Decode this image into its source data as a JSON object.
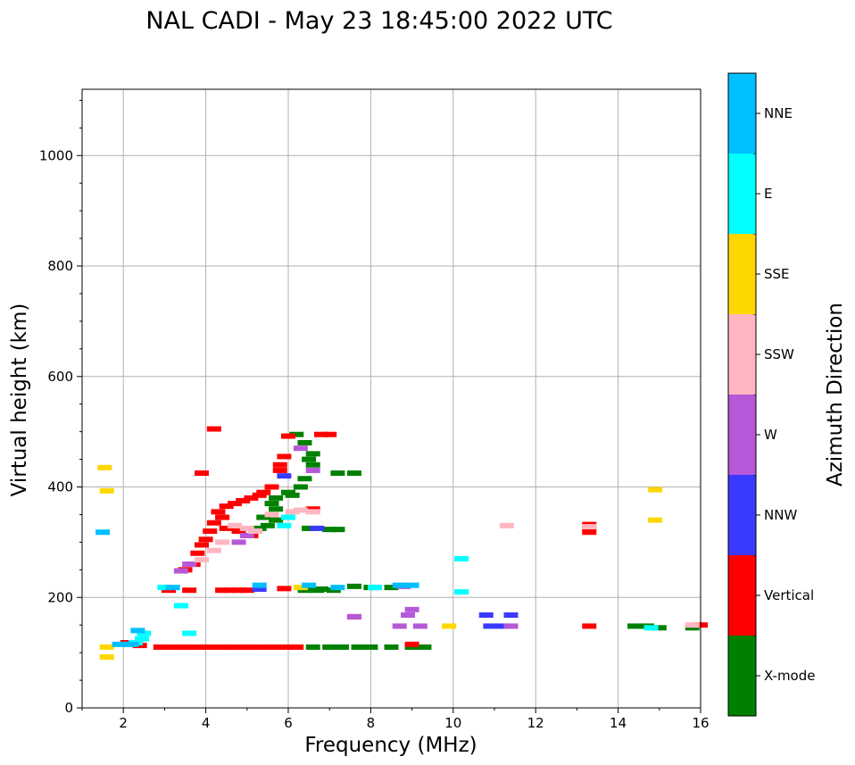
{
  "chart_data": {
    "type": "scatter",
    "title": "NAL CADI - May 23 18:45:00 2022 UTC",
    "xlabel": "Frequency (MHz)",
    "ylabel": "Virtual height (km)",
    "xlim": [
      1,
      16
    ],
    "ylim": [
      0,
      1120
    ],
    "xticks": [
      2,
      4,
      6,
      8,
      10,
      12,
      14,
      16
    ],
    "yticks": [
      0,
      200,
      400,
      600,
      800,
      1000
    ],
    "grid": true,
    "colorbar": {
      "label": "Azimuth Direction",
      "categories": [
        {
          "name": "X-mode",
          "color": "#008000"
        },
        {
          "name": "Vertical",
          "color": "#ff0000"
        },
        {
          "name": "NNW",
          "color": "#3a3aff"
        },
        {
          "name": "W",
          "color": "#b658d8"
        },
        {
          "name": "SSW",
          "color": "#ffb6c1"
        },
        {
          "name": "SSE",
          "color": "#ffd700"
        },
        {
          "name": "E",
          "color": "#00ffff"
        },
        {
          "name": "NNE",
          "color": "#00bfff"
        }
      ]
    },
    "series": [
      {
        "name": "X-mode",
        "points": [
          [
            6.2,
            495
          ],
          [
            6.4,
            480
          ],
          [
            6.6,
            460
          ],
          [
            6.5,
            450
          ],
          [
            6.6,
            440
          ],
          [
            6.4,
            415
          ],
          [
            6.3,
            400
          ],
          [
            6.0,
            390
          ],
          [
            6.1,
            385
          ],
          [
            5.7,
            380
          ],
          [
            5.6,
            370
          ],
          [
            5.7,
            360
          ],
          [
            5.4,
            345
          ],
          [
            5.7,
            340
          ],
          [
            5.5,
            330
          ],
          [
            5.3,
            325
          ],
          [
            6.5,
            325
          ],
          [
            7.0,
            323
          ],
          [
            7.2,
            323
          ],
          [
            6.8,
            215
          ],
          [
            7.1,
            213
          ],
          [
            7.6,
            220
          ],
          [
            8.0,
            218
          ],
          [
            8.5,
            218
          ],
          [
            6.4,
            213
          ],
          [
            6.7,
            213
          ],
          [
            6.6,
            110
          ],
          [
            7.0,
            110
          ],
          [
            7.3,
            110
          ],
          [
            7.7,
            110
          ],
          [
            8.0,
            110
          ],
          [
            8.5,
            110
          ],
          [
            9.0,
            110
          ],
          [
            9.3,
            110
          ],
          [
            14.4,
            148
          ],
          [
            14.7,
            148
          ],
          [
            15.0,
            145
          ],
          [
            15.8,
            145
          ],
          [
            7.2,
            425
          ],
          [
            7.6,
            425
          ]
        ]
      },
      {
        "name": "Vertical",
        "points": [
          [
            4.2,
            505
          ],
          [
            5.9,
            455
          ],
          [
            5.8,
            440
          ],
          [
            5.8,
            430
          ],
          [
            5.6,
            400
          ],
          [
            5.4,
            390
          ],
          [
            5.3,
            385
          ],
          [
            5.1,
            380
          ],
          [
            4.9,
            375
          ],
          [
            4.7,
            370
          ],
          [
            4.5,
            365
          ],
          [
            4.3,
            355
          ],
          [
            4.4,
            345
          ],
          [
            4.2,
            335
          ],
          [
            4.1,
            320
          ],
          [
            4.0,
            305
          ],
          [
            3.9,
            295
          ],
          [
            3.8,
            280
          ],
          [
            3.7,
            260
          ],
          [
            3.5,
            250
          ],
          [
            6.6,
            360
          ],
          [
            4.5,
            325
          ],
          [
            4.8,
            320
          ],
          [
            5.1,
            312
          ],
          [
            6.0,
            492
          ],
          [
            6.8,
            495
          ],
          [
            7.0,
            495
          ],
          [
            3.9,
            425
          ],
          [
            4.4,
            213
          ],
          [
            4.6,
            213
          ],
          [
            4.8,
            213
          ],
          [
            5.0,
            213
          ],
          [
            5.9,
            216
          ],
          [
            3.1,
            213
          ],
          [
            3.6,
            213
          ],
          [
            2.9,
            110
          ],
          [
            3.2,
            110
          ],
          [
            3.5,
            110
          ],
          [
            3.8,
            110
          ],
          [
            4.1,
            110
          ],
          [
            4.4,
            110
          ],
          [
            4.7,
            110
          ],
          [
            5.0,
            110
          ],
          [
            5.3,
            110
          ],
          [
            5.6,
            110
          ],
          [
            5.9,
            110
          ],
          [
            6.2,
            110
          ],
          [
            2.4,
            113
          ],
          [
            2.1,
            118
          ],
          [
            13.3,
            318
          ],
          [
            13.3,
            325
          ],
          [
            13.3,
            332
          ],
          [
            13.3,
            148
          ],
          [
            16.0,
            150
          ],
          [
            9.0,
            115
          ],
          [
            7.6,
            165
          ]
        ]
      },
      {
        "name": "NNW",
        "points": [
          [
            5.9,
            420
          ],
          [
            6.7,
            325
          ],
          [
            10.8,
            168
          ],
          [
            11.4,
            168
          ],
          [
            10.9,
            148
          ],
          [
            11.2,
            148
          ],
          [
            5.3,
            215
          ]
        ]
      },
      {
        "name": "W",
        "points": [
          [
            6.3,
            470
          ],
          [
            6.6,
            430
          ],
          [
            4.8,
            300
          ],
          [
            5.0,
            312
          ],
          [
            3.6,
            260
          ],
          [
            9.0,
            178
          ],
          [
            8.9,
            168
          ],
          [
            8.7,
            148
          ],
          [
            9.2,
            148
          ],
          [
            11.4,
            148
          ],
          [
            3.4,
            248
          ],
          [
            8.8,
            220
          ],
          [
            7.6,
            165
          ]
        ]
      },
      {
        "name": "SSW",
        "points": [
          [
            6.1,
            355
          ],
          [
            6.3,
            358
          ],
          [
            4.7,
            330
          ],
          [
            5.0,
            325
          ],
          [
            5.2,
            320
          ],
          [
            4.4,
            300
          ],
          [
            4.2,
            285
          ],
          [
            3.9,
            268
          ],
          [
            11.3,
            330
          ],
          [
            13.3,
            328
          ],
          [
            15.8,
            150
          ],
          [
            5.6,
            350
          ],
          [
            6.6,
            355
          ]
        ]
      },
      {
        "name": "SSE",
        "points": [
          [
            14.9,
            395
          ],
          [
            14.9,
            340
          ],
          [
            9.9,
            148
          ],
          [
            6.3,
            218
          ],
          [
            1.55,
            435
          ],
          [
            1.6,
            393
          ],
          [
            1.6,
            110
          ],
          [
            1.6,
            92
          ]
        ]
      },
      {
        "name": "E",
        "points": [
          [
            6.0,
            345
          ],
          [
            10.2,
            270
          ],
          [
            10.2,
            210
          ],
          [
            2.5,
            135
          ],
          [
            2.45,
            125
          ],
          [
            3.4,
            185
          ],
          [
            3.6,
            135
          ],
          [
            8.1,
            218
          ],
          [
            14.8,
            145
          ],
          [
            5.9,
            330
          ],
          [
            3.0,
            218
          ],
          [
            2.3,
            118
          ]
        ]
      },
      {
        "name": "NNE",
        "points": [
          [
            5.3,
            222
          ],
          [
            8.7,
            222
          ],
          [
            9.0,
            222
          ],
          [
            3.2,
            218
          ],
          [
            1.9,
            115
          ],
          [
            2.2,
            115
          ],
          [
            2.35,
            140
          ],
          [
            6.5,
            222
          ],
          [
            7.2,
            218
          ],
          [
            1.5,
            318
          ]
        ]
      }
    ]
  }
}
